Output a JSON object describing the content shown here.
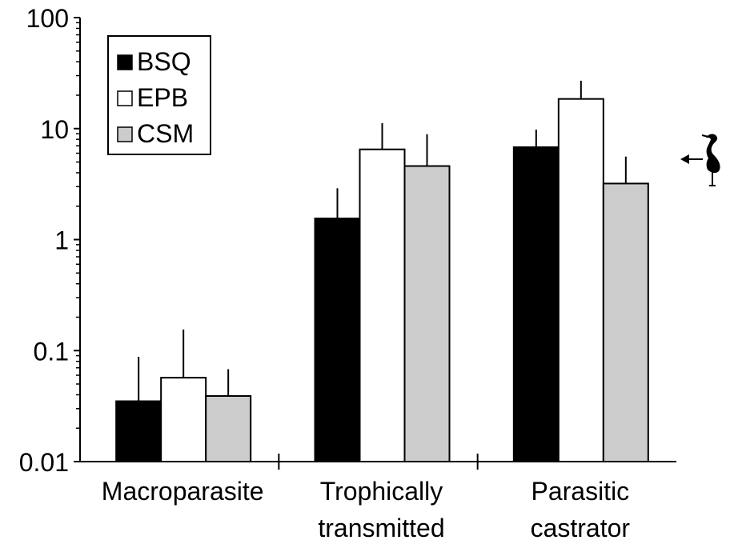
{
  "chart_data": {
    "type": "bar",
    "scale": "log",
    "ylim": [
      0.01,
      100
    ],
    "yticks": [
      0.01,
      0.1,
      1,
      10,
      100
    ],
    "ytick_labels": [
      "0.01",
      "0.1",
      "1",
      "10",
      "100"
    ],
    "categories": [
      [
        "Macroparasite"
      ],
      [
        "Trophically",
        "transmitted"
      ],
      [
        "Parasitic",
        "castrator"
      ]
    ],
    "series": [
      {
        "name": "BSQ",
        "color": "#000000",
        "values": [
          0.035,
          1.55,
          6.8
        ],
        "error_upper": [
          0.088,
          2.9,
          9.8
        ]
      },
      {
        "name": "EPB",
        "color": "#ffffff",
        "values": [
          0.057,
          6.5,
          18.5
        ],
        "error_upper": [
          0.155,
          11.2,
          27.0
        ]
      },
      {
        "name": "CSM",
        "color": "#cccccc",
        "values": [
          0.039,
          4.6,
          3.2
        ],
        "error_upper": [
          0.068,
          8.9,
          5.6
        ]
      }
    ],
    "legend_position": "top-left",
    "grid": false,
    "annotation_icon": "heron-icon"
  }
}
